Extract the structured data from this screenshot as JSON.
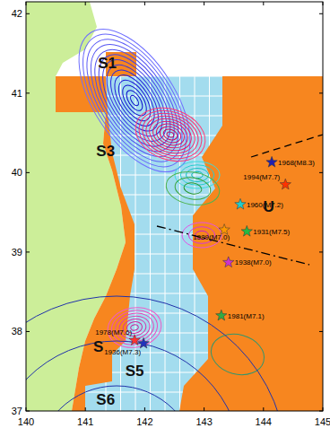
{
  "chart_data": {
    "type": "map",
    "xlim": [
      140,
      145
    ],
    "ylim": [
      37,
      42.15
    ],
    "xticks": [
      140,
      141,
      142,
      143,
      144,
      145
    ],
    "yticks": [
      37,
      38,
      39,
      40,
      41,
      42
    ],
    "events": [
      {
        "label": "1968(M8.3)",
        "lon": 144.14,
        "lat": 40.13,
        "color": "#1f1fb0"
      },
      {
        "label": "1994(M7.7)",
        "lon": 144.37,
        "lat": 39.85,
        "color": "#ff3300"
      },
      {
        "label": "1960(M7.2)",
        "lon": 143.61,
        "lat": 39.6,
        "color": "#22cccc"
      },
      {
        "label": "1989(M7.0)",
        "lon": 143.34,
        "lat": 39.28,
        "color": "#ff9900"
      },
      {
        "label": "1931(M7.5)",
        "lon": 143.72,
        "lat": 39.26,
        "color": "#22bb44"
      },
      {
        "label": "1938(M7.0)",
        "lon": 143.41,
        "lat": 38.87,
        "color": "#cc33cc"
      },
      {
        "label": "1981(M7.1)",
        "lon": 143.29,
        "lat": 38.2,
        "color": "#33aa44"
      },
      {
        "label": "1978(M7.6)",
        "lon": 141.83,
        "lat": 37.89,
        "color": "#ff3333"
      },
      {
        "label": "1936(M7.3)",
        "lon": 141.98,
        "lat": 37.85,
        "color": "#2233bb"
      }
    ],
    "region_labels": [
      {
        "label": "S1",
        "lon": 141.37,
        "lat": 41.38
      },
      {
        "label": "S3",
        "lon": 141.34,
        "lat": 40.28
      },
      {
        "label": "U",
        "lon": 144.09,
        "lat": 39.58
      },
      {
        "label": "S",
        "lon": 141.22,
        "lat": 37.81
      },
      {
        "label": "S5",
        "lon": 141.83,
        "lat": 37.51
      },
      {
        "label": "S6",
        "lon": 141.34,
        "lat": 37.15
      }
    ]
  }
}
